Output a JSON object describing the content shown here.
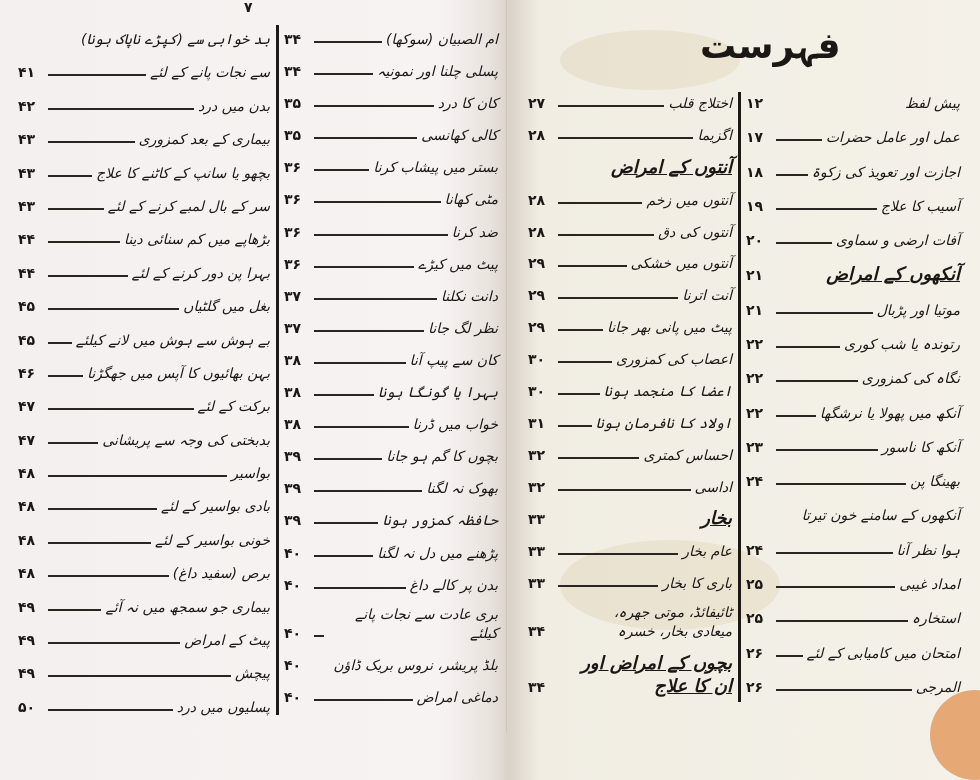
{
  "page_number": "۷",
  "title": "فہرست",
  "columns": [
    {
      "id": "right-col-1",
      "rows": [
        {
          "text": "پیش لفظ",
          "page": "۱۲",
          "nodash": true
        },
        {
          "text": "عمل اور عامل حضرات",
          "page": "۱۷"
        },
        {
          "text": "اجازت اور تعویذ کی زکوۃ",
          "page": "۱۸"
        },
        {
          "text": "آسیب کا علاج",
          "page": "۱۹"
        },
        {
          "text": "آفات ارضی و سماوی",
          "page": "۲۰"
        },
        {
          "text": "آنکھوں کے امراض",
          "page": "۲۱",
          "heading": true
        },
        {
          "text": "موتیا اور پڑبال",
          "page": "۲۱"
        },
        {
          "text": "رتوندہ یا شب کوری",
          "page": "۲۲"
        },
        {
          "text": "نگاہ کی کمزوری",
          "page": "۲۲"
        },
        {
          "text": "آنکھ میں پھولا یا نرشگھا",
          "page": "۲۲"
        },
        {
          "text": "آنکھ کا ناسور",
          "page": "۲۳"
        },
        {
          "text": "بھینگا پن",
          "page": "۲۴"
        },
        {
          "text": "آنکھوں کے سامنے خون تیرتا",
          "page": ""
        },
        {
          "text": "ہوا نظر آنا",
          "page": "۲۴"
        },
        {
          "text": "امداد غیبی",
          "page": "۲۵"
        },
        {
          "text": "استخارہ",
          "page": "۲۵"
        },
        {
          "text": "امتحان میں کامیابی کے لئے",
          "page": "۲۶"
        },
        {
          "text": "المرجی",
          "page": "۲۶"
        }
      ]
    },
    {
      "id": "right-col-2",
      "rows": [
        {
          "text": "اختلاج قلب",
          "page": "۲۷"
        },
        {
          "text": "اگزیما",
          "page": "۲۸"
        },
        {
          "text": "آنتوں کے امراض",
          "page": "",
          "heading": true
        },
        {
          "text": "آنتوں میں زخم",
          "page": "۲۸"
        },
        {
          "text": "آنتوں کی دق",
          "page": "۲۸"
        },
        {
          "text": "آنتوں میں خشکی",
          "page": "۲۹"
        },
        {
          "text": "آنت اترنا",
          "page": "۲۹"
        },
        {
          "text": "پیٹ میں پانی بھر جانا",
          "page": "۲۹"
        },
        {
          "text": "اعصاب کی کمزوری",
          "page": "۳۰"
        },
        {
          "text": "اعضا کا منجمد ہونا",
          "page": "۳۰"
        },
        {
          "text": "اولاد کا نافرمان ہونا",
          "page": "۳۱"
        },
        {
          "text": "احساس کمتری",
          "page": "۳۲"
        },
        {
          "text": "اداسی",
          "page": "۳۲"
        },
        {
          "text": "بخار",
          "page": "۳۳",
          "heading": true
        },
        {
          "text": "عام بخار",
          "page": "۳۳"
        },
        {
          "text": "باری کا بخار",
          "page": "۳۳"
        },
        {
          "text": "ٹائیفائڈ، موتی جھرہ، میعادی بخار، خسرہ",
          "page": "۳۴",
          "nodash": true
        },
        {
          "text": "بچوں کے امراض اور ان کا علاج",
          "page": "۳۴",
          "heading": true
        }
      ]
    },
    {
      "id": "left-col-2",
      "rows": [
        {
          "text": "ام الصبیان (سوکھا)",
          "page": "۳۴"
        },
        {
          "text": "پسلی چلنا اور نمونیہ",
          "page": "۳۴"
        },
        {
          "text": "کان کا درد",
          "page": "۳۵"
        },
        {
          "text": "کالی کھانسی",
          "page": "۳۵"
        },
        {
          "text": "بستر میں پیشاب کرنا",
          "page": "۳۶"
        },
        {
          "text": "مٹی کھانا",
          "page": "۳۶"
        },
        {
          "text": "ضد کرنا",
          "page": "۳۶"
        },
        {
          "text": "پیٹ میں کیڑے",
          "page": "۳۶"
        },
        {
          "text": "دانت نکلنا",
          "page": "۳۷"
        },
        {
          "text": "نظر لگ جانا",
          "page": "۳۷"
        },
        {
          "text": "کان سے پیپ آنا",
          "page": "۳۸"
        },
        {
          "text": "بہرا یا گونگا ہونا",
          "page": "۳۸"
        },
        {
          "text": "خواب میں ڈرنا",
          "page": "۳۸"
        },
        {
          "text": "بچوں کا گم ہو جانا",
          "page": "۳۹"
        },
        {
          "text": "بھوک نہ لگنا",
          "page": "۳۹"
        },
        {
          "text": "حافظہ کمزور ہونا",
          "page": "۳۹"
        },
        {
          "text": "پڑھنے میں دل نہ لگنا",
          "page": "۴۰"
        },
        {
          "text": "بدن پر کالے داغ",
          "page": "۴۰"
        },
        {
          "text": "بری عادت سے نجات پانے کیلئے",
          "page": "۴۰"
        },
        {
          "text": "بلڈ پریشر، نروس بریک ڈاؤن",
          "page": "۴۰",
          "nodash": true
        },
        {
          "text": "دماغی امراض",
          "page": "۴۰"
        }
      ]
    },
    {
      "id": "left-col-1",
      "rows": [
        {
          "text": "بد خوابی سے (کپڑے ناپاک ہونا)",
          "page": ""
        },
        {
          "text": "سے نجات پانے کے لئے",
          "page": "۴۱"
        },
        {
          "text": "بدن میں درد",
          "page": "۴۲"
        },
        {
          "text": "بیماری کے بعد کمزوری",
          "page": "۴۳"
        },
        {
          "text": "بچھو یا سانپ کے کاٹنے کا علاج",
          "page": "۴۳"
        },
        {
          "text": "سر کے بال لمبے کرنے کے لئے",
          "page": "۴۳"
        },
        {
          "text": "بڑھاپے میں کم سنائی دینا",
          "page": "۴۴"
        },
        {
          "text": "بہرا پن دور کرنے کے لئے",
          "page": "۴۴"
        },
        {
          "text": "بغل میں گلٹیاں",
          "page": "۴۵"
        },
        {
          "text": "بے ہوش سے ہوش میں لانے کیلئے",
          "page": "۴۵"
        },
        {
          "text": "بہن بھائیوں کا آپس میں جھگڑنا",
          "page": "۴۶"
        },
        {
          "text": "برکت کے لئے",
          "page": "۴۷"
        },
        {
          "text": "بدبختی کی وجہ سے پریشانی",
          "page": "۴۷"
        },
        {
          "text": "بواسیر",
          "page": "۴۸"
        },
        {
          "text": "بادی بواسیر کے لئے",
          "page": "۴۸"
        },
        {
          "text": "خونی بواسیر کے لئے",
          "page": "۴۸"
        },
        {
          "text": "برص (سفید داغ)",
          "page": "۴۸"
        },
        {
          "text": "بیماری جو سمجھ میں نہ آئے",
          "page": "۴۹"
        },
        {
          "text": "پیٹ کے امراض",
          "page": "۴۹"
        },
        {
          "text": "پیچش",
          "page": "۴۹"
        },
        {
          "text": "پسلیوں میں درد",
          "page": "۵۰"
        }
      ]
    }
  ]
}
